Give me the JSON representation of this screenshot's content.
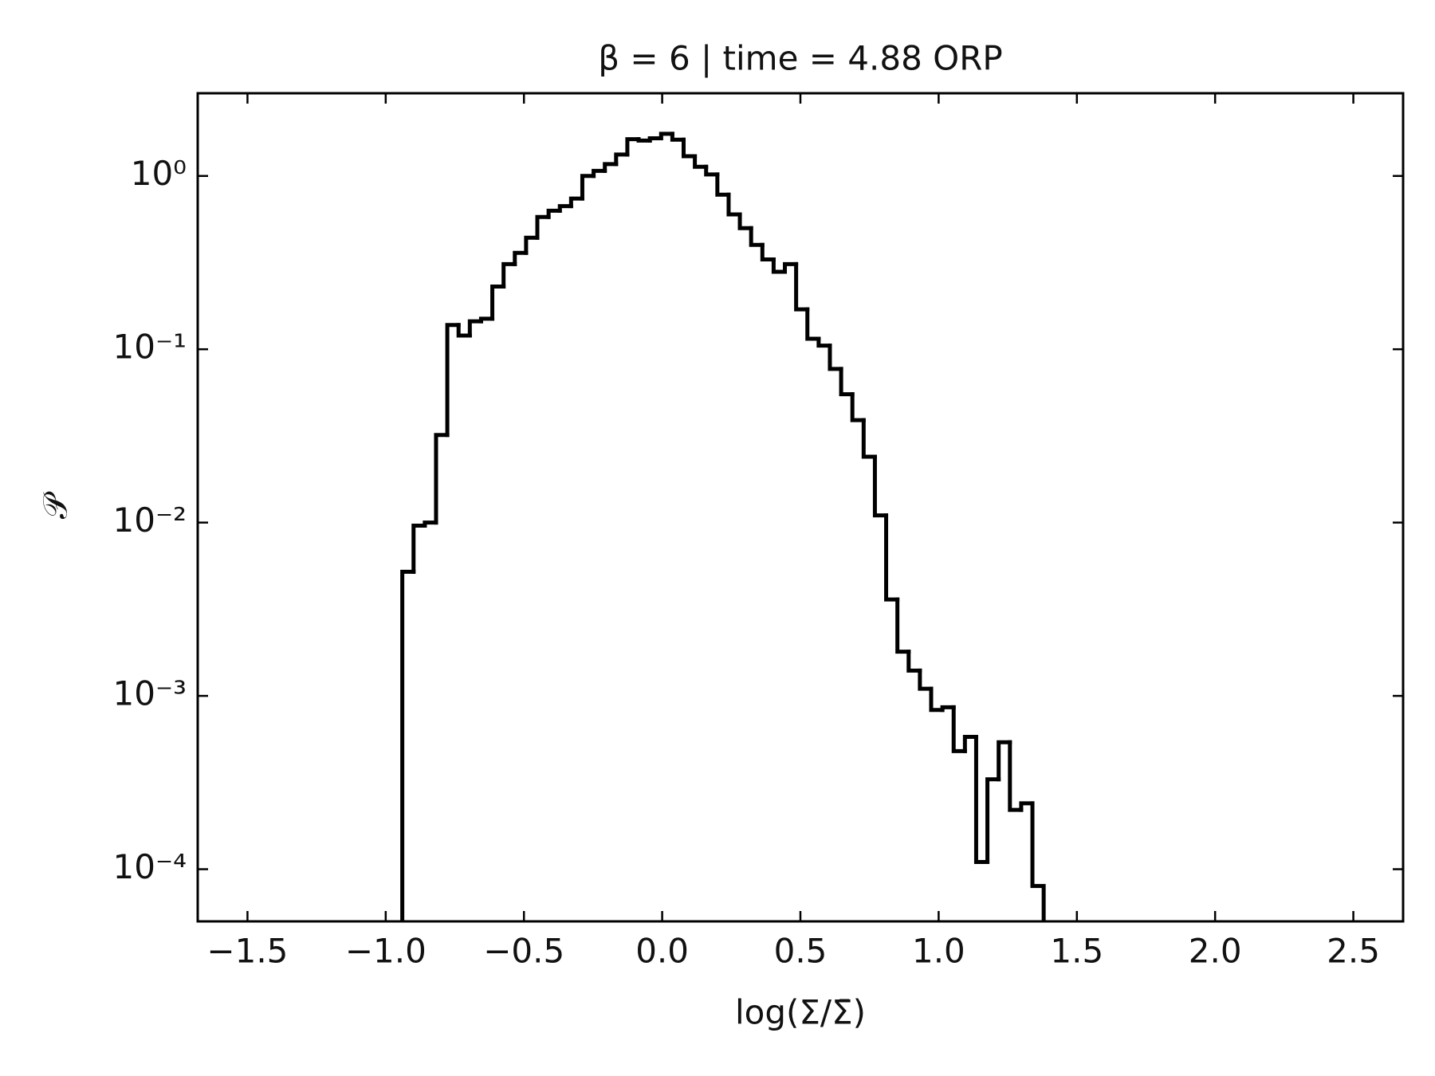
{
  "chart_data": {
    "type": "histogram",
    "title": "β = 6 | time = 4.88 ORP",
    "xlabel": "log(Σ/Σ̄)",
    "ylabel": "𝒫",
    "bins": [
      -0.94,
      -0.8993,
      -0.8586,
      -0.8179,
      -0.7772,
      -0.7365,
      -0.6958,
      -0.6551,
      -0.6144,
      -0.5737,
      -0.533,
      -0.4923,
      -0.4516,
      -0.4109,
      -0.3702,
      -0.3295,
      -0.2888,
      -0.2481,
      -0.2074,
      -0.1667,
      -0.126,
      -0.0853,
      -0.0446,
      -0.0039,
      0.0368,
      0.0775,
      0.1182,
      0.1589,
      0.1996,
      0.2403,
      0.281,
      0.3217,
      0.3624,
      0.4031,
      0.4438,
      0.4845,
      0.5252,
      0.5659,
      0.6066,
      0.6473,
      0.688,
      0.7287,
      0.7694,
      0.8101,
      0.8508,
      0.8915,
      0.9322,
      0.9729,
      1.0136,
      1.0543,
      1.095,
      1.1357,
      1.1764,
      1.2171,
      1.2578,
      1.2985,
      1.3392,
      1.3799
    ],
    "values": [
      0.0052,
      0.0096,
      0.01,
      0.032,
      0.138,
      0.12,
      0.145,
      0.15,
      0.23,
      0.31,
      0.36,
      0.44,
      0.58,
      0.63,
      0.67,
      0.74,
      1.0,
      1.07,
      1.17,
      1.33,
      1.63,
      1.6,
      1.65,
      1.75,
      1.62,
      1.3,
      1.13,
      1.02,
      0.78,
      0.6,
      0.5,
      0.4,
      0.33,
      0.28,
      0.31,
      0.17,
      0.115,
      0.105,
      0.077,
      0.055,
      0.039,
      0.024,
      0.011,
      0.0036,
      0.0018,
      0.0014,
      0.0011,
      0.00083,
      0.00086,
      0.00048,
      0.00058,
      0.00011,
      0.00033,
      0.00054,
      0.00022,
      0.00024,
      8e-05
    ],
    "color": "#000000",
    "log_y": true,
    "xlim": [
      -1.68,
      2.68
    ],
    "ylim": [
      5e-05,
      3
    ],
    "xticks": [
      {
        "value": -1.5,
        "label": "−1.5"
      },
      {
        "value": -1,
        "label": "−1.0"
      },
      {
        "value": -0.5,
        "label": "−0.5"
      },
      {
        "value": 0,
        "label": "0.0"
      },
      0.5,
      {
        "value": 1,
        "label": "1.0"
      },
      1.5,
      {
        "value": 2,
        "label": "2.0"
      },
      2.5
    ],
    "yticks": [
      {
        "value": 1,
        "label": "10⁰"
      },
      {
        "value": 0.1,
        "label": "10⁻¹"
      },
      {
        "value": 0.01,
        "label": "10⁻²"
      },
      {
        "value": 0.001,
        "label": "10⁻³"
      },
      {
        "value": 0.0001,
        "label": "10⁻⁴"
      }
    ]
  }
}
